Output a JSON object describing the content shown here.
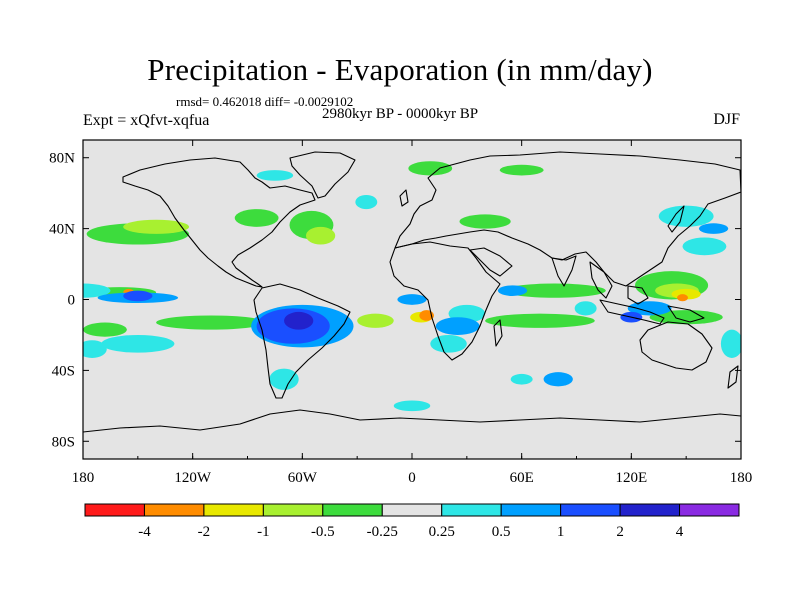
{
  "title": "Precipitation - Evaporation (in mm/day)",
  "stats": "rmsd= 0.462018 diff= -0.0029102",
  "experiment": "Expt = xQfvt-xqfua",
  "period": "2980kyr BP - 0000kyr BP",
  "season": "DJF",
  "colors": {
    "ocean": "#e4e4e4",
    "coast": "#000000"
  },
  "chart_data": {
    "type": "heatmap",
    "title": "Precipitation - Evaporation (in mm/day)",
    "subtitle": "2980kyr BP - 0000kyr BP",
    "xlabel": "",
    "ylabel": "",
    "x_ticks": [
      "180",
      "120W",
      "60W",
      "0",
      "60E",
      "120E",
      "180"
    ],
    "x_tick_values": [
      -180,
      -120,
      -60,
      0,
      60,
      120,
      180
    ],
    "y_ticks": [
      "80N",
      "40N",
      "0",
      "40S",
      "80S"
    ],
    "y_tick_values": [
      80,
      40,
      0,
      -40,
      -80
    ],
    "xlim": [
      -180,
      180
    ],
    "ylim": [
      -90,
      90
    ],
    "colorbar": {
      "labels": [
        "-4",
        "-2",
        "-1",
        "-0.5",
        "-0.25",
        "0.25",
        "0.5",
        "1",
        "2",
        "4"
      ],
      "colors": [
        "#ff1a1a",
        "#ff8c00",
        "#e8e800",
        "#a8f030",
        "#3ddc3d",
        "#e4e4e4",
        "#2ee6e6",
        "#00a0ff",
        "#1a4fff",
        "#2222cc",
        "#8a2be2"
      ]
    },
    "fields": [
      {
        "lon": 78,
        "lat": 5,
        "rx": 28,
        "ry": 4,
        "value": -0.4
      },
      {
        "lon": -150,
        "lat": 37,
        "rx": 28,
        "ry": 6,
        "value": -0.4
      },
      {
        "lon": -55,
        "lat": 42,
        "rx": 12,
        "ry": 8,
        "value": -0.4
      },
      {
        "lon": -85,
        "lat": 46,
        "rx": 12,
        "ry": 5,
        "value": -0.4
      },
      {
        "lon": -160,
        "lat": 4,
        "rx": 20,
        "ry": 3,
        "value": -0.4
      },
      {
        "lon": -110,
        "lat": -13,
        "rx": 30,
        "ry": 4,
        "value": -0.4
      },
      {
        "lon": 150,
        "lat": -10,
        "rx": 20,
        "ry": 4,
        "value": -0.4
      },
      {
        "lon": 142,
        "lat": 8,
        "rx": 20,
        "ry": 8,
        "value": -0.4
      },
      {
        "lon": 70,
        "lat": -12,
        "rx": 30,
        "ry": 4,
        "value": -0.4
      },
      {
        "lon": -168,
        "lat": -17,
        "rx": 12,
        "ry": 4,
        "value": -0.4
      },
      {
        "lon": 10,
        "lat": 74,
        "rx": 12,
        "ry": 4,
        "value": -0.4
      },
      {
        "lon": 60,
        "lat": 73,
        "rx": 12,
        "ry": 3,
        "value": -0.4
      },
      {
        "lon": 40,
        "lat": 44,
        "rx": 14,
        "ry": 4,
        "value": -0.4
      },
      {
        "lon": -140,
        "lat": 41,
        "rx": 18,
        "ry": 4,
        "value": -0.75
      },
      {
        "lon": -50,
        "lat": 36,
        "rx": 8,
        "ry": 5,
        "value": -0.75
      },
      {
        "lon": 145,
        "lat": 5,
        "rx": 12,
        "ry": 4,
        "value": -0.75
      },
      {
        "lon": -20,
        "lat": -12,
        "rx": 10,
        "ry": 4,
        "value": -0.75
      },
      {
        "lon": 5,
        "lat": -10,
        "rx": 6,
        "ry": 3,
        "value": -1.5
      },
      {
        "lon": 150,
        "lat": 3,
        "rx": 8,
        "ry": 3,
        "value": -1.5
      },
      {
        "lon": 8,
        "lat": -9,
        "rx": 4,
        "ry": 3,
        "value": -3
      },
      {
        "lon": 148,
        "lat": 1,
        "rx": 3,
        "ry": 2,
        "value": -3
      },
      {
        "lon": -155,
        "lat": 4,
        "rx": 3,
        "ry": 2,
        "value": -3
      },
      {
        "lon": -180,
        "lat": 5,
        "rx": 15,
        "ry": 4,
        "value": 0.4
      },
      {
        "lon": -150,
        "lat": -25,
        "rx": 20,
        "ry": 5,
        "value": 0.4
      },
      {
        "lon": -175,
        "lat": -28,
        "rx": 8,
        "ry": 5,
        "value": 0.4
      },
      {
        "lon": 150,
        "lat": 47,
        "rx": 15,
        "ry": 6,
        "value": 0.4
      },
      {
        "lon": 160,
        "lat": 30,
        "rx": 12,
        "ry": 5,
        "value": 0.4
      },
      {
        "lon": 175,
        "lat": -25,
        "rx": 6,
        "ry": 8,
        "value": 0.4
      },
      {
        "lon": -75,
        "lat": 70,
        "rx": 10,
        "ry": 3,
        "value": 0.4
      },
      {
        "lon": -25,
        "lat": 55,
        "rx": 6,
        "ry": 4,
        "value": 0.4
      },
      {
        "lon": 20,
        "lat": -25,
        "rx": 10,
        "ry": 5,
        "value": 0.4
      },
      {
        "lon": 30,
        "lat": -8,
        "rx": 10,
        "ry": 5,
        "value": 0.4
      },
      {
        "lon": 95,
        "lat": -5,
        "rx": 6,
        "ry": 4,
        "value": 0.4
      },
      {
        "lon": -70,
        "lat": -45,
        "rx": 8,
        "ry": 6,
        "value": 0.4
      },
      {
        "lon": 60,
        "lat": -45,
        "rx": 6,
        "ry": 3,
        "value": 0.4
      },
      {
        "lon": 0,
        "lat": -60,
        "rx": 10,
        "ry": 3,
        "value": 0.4
      },
      {
        "lon": -60,
        "lat": -15,
        "rx": 28,
        "ry": 12,
        "value": 0.75
      },
      {
        "lon": -150,
        "lat": 1,
        "rx": 22,
        "ry": 3,
        "value": 0.75
      },
      {
        "lon": 25,
        "lat": -15,
        "rx": 12,
        "ry": 5,
        "value": 0.75
      },
      {
        "lon": 0,
        "lat": 0,
        "rx": 8,
        "ry": 3,
        "value": 0.75
      },
      {
        "lon": 130,
        "lat": -5,
        "rx": 12,
        "ry": 4,
        "value": 0.75
      },
      {
        "lon": 165,
        "lat": 40,
        "rx": 8,
        "ry": 3,
        "value": 0.75
      },
      {
        "lon": 80,
        "lat": -45,
        "rx": 8,
        "ry": 4,
        "value": 0.75
      },
      {
        "lon": 55,
        "lat": 5,
        "rx": 8,
        "ry": 3,
        "value": 0.75
      },
      {
        "lon": -65,
        "lat": -15,
        "rx": 20,
        "ry": 10,
        "value": 1.5
      },
      {
        "lon": -150,
        "lat": 2,
        "rx": 8,
        "ry": 3,
        "value": 1.5
      },
      {
        "lon": 120,
        "lat": -10,
        "rx": 6,
        "ry": 3,
        "value": 1.5
      },
      {
        "lon": -62,
        "lat": -12,
        "rx": 8,
        "ry": 5,
        "value": 3
      }
    ]
  }
}
